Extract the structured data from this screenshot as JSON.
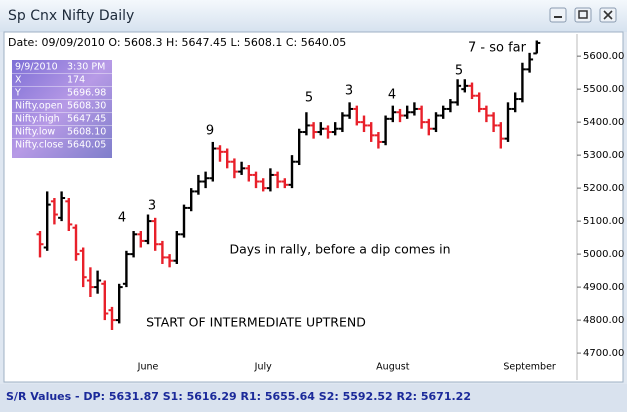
{
  "window": {
    "title": "Sp Cnx Nifty Daily"
  },
  "info_line": "Date: 09/09/2010 O: 5608.3 H: 5647.45 L: 5608.1 C: 5640.05",
  "info_panel": [
    [
      "9/9/2010",
      "3:30 PM"
    ],
    [
      "X",
      "174"
    ],
    [
      "Y",
      "5696.98"
    ],
    [
      "Nifty.open",
      "5608.30"
    ],
    [
      "Nifty.high",
      "5647.45"
    ],
    [
      "Nifty.low",
      "5608.10"
    ],
    [
      "Nifty.close",
      "5640.05"
    ]
  ],
  "footer": "S/R Values - DP: 5631.87 S1: 5616.29 R1: 5655.64 S2: 5592.52 R2: 5671.22",
  "chart_data": {
    "type": "ohlc",
    "up_color": "#000000",
    "down_color": "#e8202a",
    "categories": [
      null,
      null,
      null,
      null,
      null,
      null,
      null,
      null,
      null,
      null,
      null,
      null,
      null,
      null,
      null,
      "June",
      null,
      null,
      null,
      null,
      null,
      null,
      null,
      null,
      null,
      null,
      null,
      null,
      null,
      null,
      null,
      "July",
      null,
      null,
      null,
      null,
      null,
      null,
      null,
      null,
      null,
      null,
      null,
      null,
      null,
      null,
      null,
      null,
      null,
      "August",
      null,
      null,
      null,
      null,
      null,
      null,
      null,
      null,
      null,
      null,
      null,
      null,
      null,
      null,
      null,
      null,
      null,
      null,
      "September",
      null
    ],
    "open": [
      5060,
      5020,
      5160,
      5110,
      5160,
      5080,
      5010,
      4920,
      4900,
      4910,
      4830,
      4800,
      4910,
      5000,
      5060,
      5040,
      5100,
      5030,
      4990,
      4980,
      5060,
      5140,
      5190,
      5220,
      5230,
      5320,
      5310,
      5280,
      5250,
      5260,
      5240,
      5220,
      5200,
      5240,
      5220,
      5210,
      5280,
      5370,
      5390,
      5370,
      5380,
      5370,
      5380,
      5420,
      5440,
      5400,
      5390,
      5360,
      5340,
      5410,
      5430,
      5420,
      5430,
      5440,
      5400,
      5380,
      5420,
      5440,
      5460,
      5500,
      5510,
      5480,
      5440,
      5420,
      5390,
      5350,
      5440,
      5470,
      5560,
      5608.3
    ],
    "high": [
      5070,
      5190,
      5170,
      5190,
      5170,
      5090,
      5020,
      4960,
      4950,
      4920,
      4840,
      4910,
      5010,
      5070,
      5070,
      5120,
      5110,
      5040,
      5000,
      5070,
      5150,
      5200,
      5240,
      5250,
      5340,
      5330,
      5320,
      5290,
      5280,
      5270,
      5250,
      5230,
      5260,
      5250,
      5230,
      5300,
      5380,
      5430,
      5400,
      5400,
      5390,
      5400,
      5430,
      5460,
      5450,
      5420,
      5400,
      5370,
      5420,
      5450,
      5440,
      5450,
      5460,
      5450,
      5410,
      5430,
      5450,
      5470,
      5530,
      5530,
      5520,
      5490,
      5450,
      5430,
      5400,
      5460,
      5490,
      5580,
      5610,
      5647.45
    ],
    "low": [
      4990,
      5010,
      5090,
      5100,
      5070,
      4980,
      4900,
      4870,
      4880,
      4800,
      4770,
      4790,
      4900,
      4990,
      5020,
      5030,
      5010,
      4970,
      4960,
      4970,
      5050,
      5130,
      5180,
      5200,
      5220,
      5280,
      5260,
      5230,
      5240,
      5220,
      5200,
      5190,
      5190,
      5200,
      5200,
      5200,
      5270,
      5360,
      5350,
      5360,
      5350,
      5360,
      5370,
      5410,
      5390,
      5370,
      5340,
      5320,
      5330,
      5400,
      5400,
      5410,
      5420,
      5380,
      5360,
      5370,
      5410,
      5430,
      5450,
      5490,
      5470,
      5430,
      5400,
      5370,
      5320,
      5340,
      5430,
      5460,
      5550,
      5608.1
    ],
    "close": [
      5030,
      5150,
      5120,
      5170,
      5090,
      5000,
      4930,
      4900,
      4920,
      4820,
      4800,
      4900,
      5000,
      5060,
      5040,
      5100,
      5030,
      4990,
      4980,
      5060,
      5140,
      5190,
      5220,
      5230,
      5320,
      5310,
      5280,
      5250,
      5260,
      5240,
      5220,
      5200,
      5240,
      5220,
      5210,
      5280,
      5370,
      5390,
      5370,
      5380,
      5370,
      5380,
      5420,
      5440,
      5400,
      5390,
      5360,
      5340,
      5410,
      5430,
      5420,
      5430,
      5440,
      5400,
      5380,
      5420,
      5440,
      5460,
      5510,
      5510,
      5480,
      5440,
      5420,
      5390,
      5350,
      5440,
      5470,
      5560,
      5590,
      5640.05
    ],
    "ylim": [
      4673,
      5655
    ],
    "yticks": [
      {
        "value": 4700,
        "label": "4700.00"
      },
      {
        "value": 4800,
        "label": "4800.00"
      },
      {
        "value": 4900,
        "label": "4900.00"
      },
      {
        "value": 5000,
        "label": "5000.00"
      },
      {
        "value": 5100,
        "label": "5100.00"
      },
      {
        "value": 5200,
        "label": "5200.00"
      },
      {
        "value": 5300,
        "label": "5300.00"
      },
      {
        "value": 5400,
        "label": "5400.00"
      },
      {
        "value": 5500,
        "label": "5500.00"
      },
      {
        "value": 5600,
        "label": "5600.00"
      }
    ],
    "annotations": [
      "4",
      "3",
      "9",
      "5",
      "3",
      "4",
      "5",
      "7 - so far",
      "Days in rally, before a dip comes in",
      "START OF INTERMEDIATE UPTREND"
    ]
  }
}
